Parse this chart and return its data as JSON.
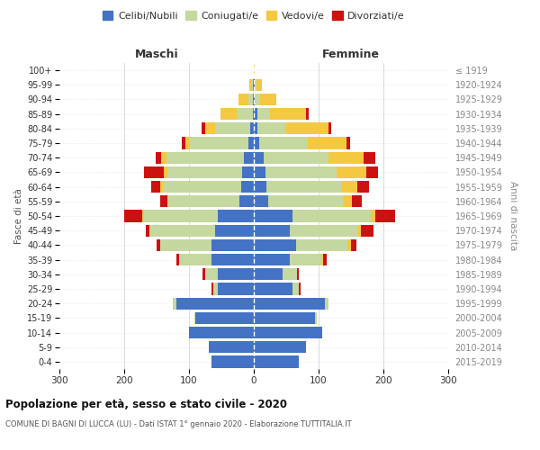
{
  "age_groups": [
    "0-4",
    "5-9",
    "10-14",
    "15-19",
    "20-24",
    "25-29",
    "30-34",
    "35-39",
    "40-44",
    "45-49",
    "50-54",
    "55-59",
    "60-64",
    "65-69",
    "70-74",
    "75-79",
    "80-84",
    "85-89",
    "90-94",
    "95-99",
    "100+"
  ],
  "birth_years": [
    "2015-2019",
    "2010-2014",
    "2005-2009",
    "2000-2004",
    "1995-1999",
    "1990-1994",
    "1985-1989",
    "1980-1984",
    "1975-1979",
    "1970-1974",
    "1965-1969",
    "1960-1964",
    "1955-1959",
    "1950-1954",
    "1945-1949",
    "1940-1944",
    "1935-1939",
    "1930-1934",
    "1925-1929",
    "1920-1924",
    "≤ 1919"
  ],
  "male": {
    "celibi": [
      65,
      70,
      100,
      90,
      120,
      55,
      55,
      65,
      65,
      60,
      55,
      22,
      20,
      18,
      15,
      8,
      5,
      2,
      1,
      1,
      0
    ],
    "coniugati": [
      0,
      0,
      0,
      2,
      5,
      8,
      20,
      50,
      80,
      100,
      115,
      110,
      120,
      115,
      120,
      90,
      55,
      25,
      8,
      2,
      0
    ],
    "vedovi": [
      0,
      0,
      0,
      0,
      0,
      0,
      0,
      0,
      0,
      1,
      2,
      2,
      4,
      6,
      8,
      8,
      15,
      25,
      15,
      4,
      0
    ],
    "divorziati": [
      0,
      0,
      0,
      0,
      0,
      2,
      4,
      5,
      5,
      5,
      28,
      10,
      15,
      30,
      8,
      5,
      5,
      0,
      0,
      0,
      0
    ]
  },
  "female": {
    "nubili": [
      70,
      80,
      105,
      95,
      110,
      60,
      45,
      55,
      65,
      55,
      60,
      22,
      20,
      18,
      15,
      8,
      5,
      5,
      2,
      2,
      0
    ],
    "coniugate": [
      0,
      0,
      0,
      2,
      5,
      10,
      22,
      50,
      80,
      105,
      120,
      115,
      115,
      110,
      100,
      75,
      45,
      20,
      8,
      2,
      0
    ],
    "vedove": [
      0,
      0,
      0,
      0,
      0,
      0,
      0,
      2,
      5,
      5,
      8,
      15,
      25,
      45,
      55,
      60,
      65,
      55,
      25,
      8,
      1
    ],
    "divorziate": [
      0,
      0,
      0,
      0,
      0,
      2,
      2,
      5,
      8,
      20,
      30,
      15,
      18,
      18,
      18,
      5,
      5,
      5,
      0,
      0,
      0
    ]
  },
  "colors": {
    "celibi_nubili": "#4472C4",
    "coniugati": "#C5D8A0",
    "vedovi": "#F5C842",
    "divorziati": "#CC1111"
  },
  "title": "Popolazione per età, sesso e stato civile - 2020",
  "subtitle": "COMUNE DI BAGNI DI LUCCA (LU) - Dati ISTAT 1° gennaio 2020 - Elaborazione TUTTITALIA.IT",
  "xlabel_left": "Maschi",
  "xlabel_right": "Femmine",
  "ylabel_left": "Fasce di età",
  "ylabel_right": "Anni di nascita",
  "legend_labels": [
    "Celibi/Nubili",
    "Coniugati/e",
    "Vedovi/e",
    "Divorziati/e"
  ],
  "xlim": 300,
  "background_color": "#ffffff",
  "grid_color": "#cccccc"
}
